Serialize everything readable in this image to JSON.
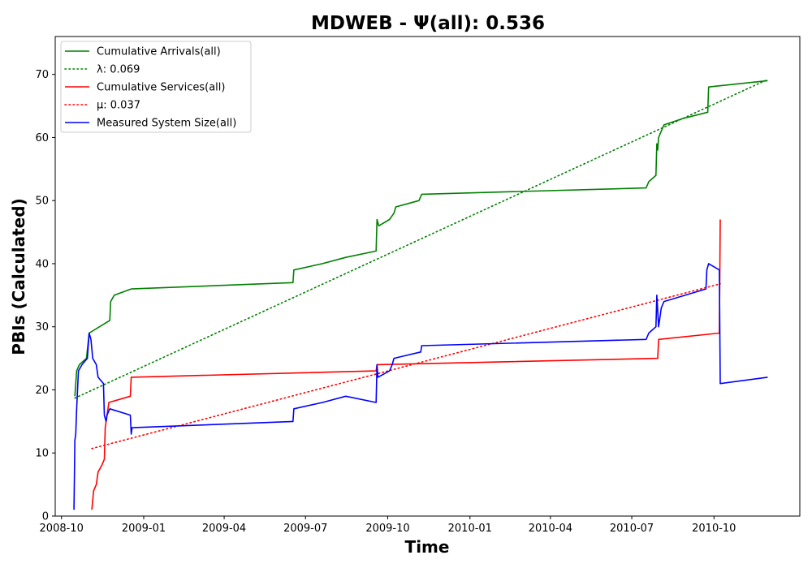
{
  "chart_data": {
    "type": "line",
    "title": "MDWEB -  Ψ(all): 0.536",
    "xlabel": "Time",
    "ylabel": "PBIs (Calculated)",
    "xlim": [
      "2008-09-24",
      "2011-01-05"
    ],
    "ylim": [
      0,
      76
    ],
    "x_ticks": [
      "2008-10",
      "2009-01",
      "2009-04",
      "2009-07",
      "2009-10",
      "2010-01",
      "2010-04",
      "2010-07",
      "2010-10"
    ],
    "y_ticks": [
      0,
      10,
      20,
      30,
      40,
      50,
      60,
      70
    ],
    "grid": false,
    "legend_position": "top-left",
    "series": [
      {
        "name": "Cumulative Arrivals(all)",
        "color": "#008000",
        "style": "solid",
        "points": [
          [
            "2008-10-16",
            19
          ],
          [
            "2008-10-18",
            23
          ],
          [
            "2008-10-21",
            24
          ],
          [
            "2008-10-29",
            25
          ],
          [
            "2008-11-01",
            29
          ],
          [
            "2008-11-24",
            31
          ],
          [
            "2008-11-25",
            34
          ],
          [
            "2008-11-29",
            35
          ],
          [
            "2008-12-18",
            36
          ],
          [
            "2009-06-17",
            37
          ],
          [
            "2009-06-18",
            39
          ],
          [
            "2009-07-20",
            40
          ],
          [
            "2009-08-15",
            41
          ],
          [
            "2009-09-18",
            42
          ],
          [
            "2009-09-19",
            47
          ],
          [
            "2009-09-21",
            46
          ],
          [
            "2009-10-03",
            47
          ],
          [
            "2009-10-08",
            48
          ],
          [
            "2009-10-10",
            49
          ],
          [
            "2009-11-05",
            50
          ],
          [
            "2009-11-08",
            51
          ],
          [
            "2010-07-17",
            52
          ],
          [
            "2010-07-20",
            53
          ],
          [
            "2010-07-28",
            54
          ],
          [
            "2010-07-29",
            59
          ],
          [
            "2010-07-30",
            58
          ],
          [
            "2010-07-31",
            60
          ],
          [
            "2010-08-03",
            61
          ],
          [
            "2010-08-06",
            62
          ],
          [
            "2010-08-27",
            63
          ],
          [
            "2010-09-24",
            64
          ],
          [
            "2010-09-25",
            68
          ],
          [
            "2010-11-30",
            69
          ]
        ]
      },
      {
        "name": "λ: 0.069",
        "color": "#008000",
        "style": "dotted",
        "points": [
          [
            "2008-10-16",
            18.7
          ],
          [
            "2010-11-30",
            69.2
          ]
        ]
      },
      {
        "name": "Cumulative Services(all)",
        "color": "#ff0000",
        "style": "solid",
        "points": [
          [
            "2008-11-04",
            1
          ],
          [
            "2008-11-06",
            4
          ],
          [
            "2008-11-09",
            5
          ],
          [
            "2008-11-11",
            7
          ],
          [
            "2008-11-15",
            8
          ],
          [
            "2008-11-18",
            9
          ],
          [
            "2008-11-19",
            14
          ],
          [
            "2008-11-21",
            16
          ],
          [
            "2008-11-23",
            18
          ],
          [
            "2008-12-17",
            19
          ],
          [
            "2008-12-18",
            22
          ],
          [
            "2009-09-18",
            23
          ],
          [
            "2009-09-19",
            24
          ],
          [
            "2010-07-30",
            25
          ],
          [
            "2010-07-31",
            28
          ],
          [
            "2010-10-07",
            29
          ],
          [
            "2010-10-08",
            47
          ]
        ]
      },
      {
        "name": "μ: 0.037",
        "color": "#ff0000",
        "style": "dotted",
        "points": [
          [
            "2008-11-04",
            10.7
          ],
          [
            "2010-10-08",
            36.8
          ]
        ]
      },
      {
        "name": "Measured System Size(all)",
        "color": "#0000ff",
        "style": "solid",
        "points": [
          [
            "2008-10-15",
            1
          ],
          [
            "2008-10-16",
            12
          ],
          [
            "2008-10-17",
            13
          ],
          [
            "2008-10-18",
            17
          ],
          [
            "2008-10-19",
            20
          ],
          [
            "2008-10-20",
            23
          ],
          [
            "2008-10-24",
            24
          ],
          [
            "2008-10-30",
            25
          ],
          [
            "2008-11-01",
            29
          ],
          [
            "2008-11-03",
            28
          ],
          [
            "2008-11-05",
            25
          ],
          [
            "2008-11-09",
            24
          ],
          [
            "2008-11-11",
            22
          ],
          [
            "2008-11-17",
            21
          ],
          [
            "2008-11-18",
            16
          ],
          [
            "2008-11-20",
            15
          ],
          [
            "2008-11-21",
            16
          ],
          [
            "2008-11-24",
            17
          ],
          [
            "2008-12-17",
            16
          ],
          [
            "2008-12-18",
            13
          ],
          [
            "2008-12-19",
            14
          ],
          [
            "2009-06-17",
            15
          ],
          [
            "2009-06-18",
            17
          ],
          [
            "2009-07-20",
            18
          ],
          [
            "2009-08-15",
            19
          ],
          [
            "2009-09-18",
            18
          ],
          [
            "2009-09-19",
            24
          ],
          [
            "2009-09-20",
            22
          ],
          [
            "2009-10-03",
            23
          ],
          [
            "2009-10-06",
            24
          ],
          [
            "2009-10-08",
            25
          ],
          [
            "2009-11-07",
            26
          ],
          [
            "2009-11-08",
            27
          ],
          [
            "2010-07-17",
            28
          ],
          [
            "2010-07-20",
            29
          ],
          [
            "2010-07-28",
            30
          ],
          [
            "2010-07-29",
            35
          ],
          [
            "2010-07-31",
            30
          ],
          [
            "2010-08-03",
            33
          ],
          [
            "2010-08-06",
            34
          ],
          [
            "2010-09-22",
            36
          ],
          [
            "2010-09-23",
            39
          ],
          [
            "2010-09-25",
            40
          ],
          [
            "2010-10-07",
            39
          ],
          [
            "2010-10-08",
            21
          ],
          [
            "2010-11-30",
            22
          ]
        ]
      }
    ]
  }
}
